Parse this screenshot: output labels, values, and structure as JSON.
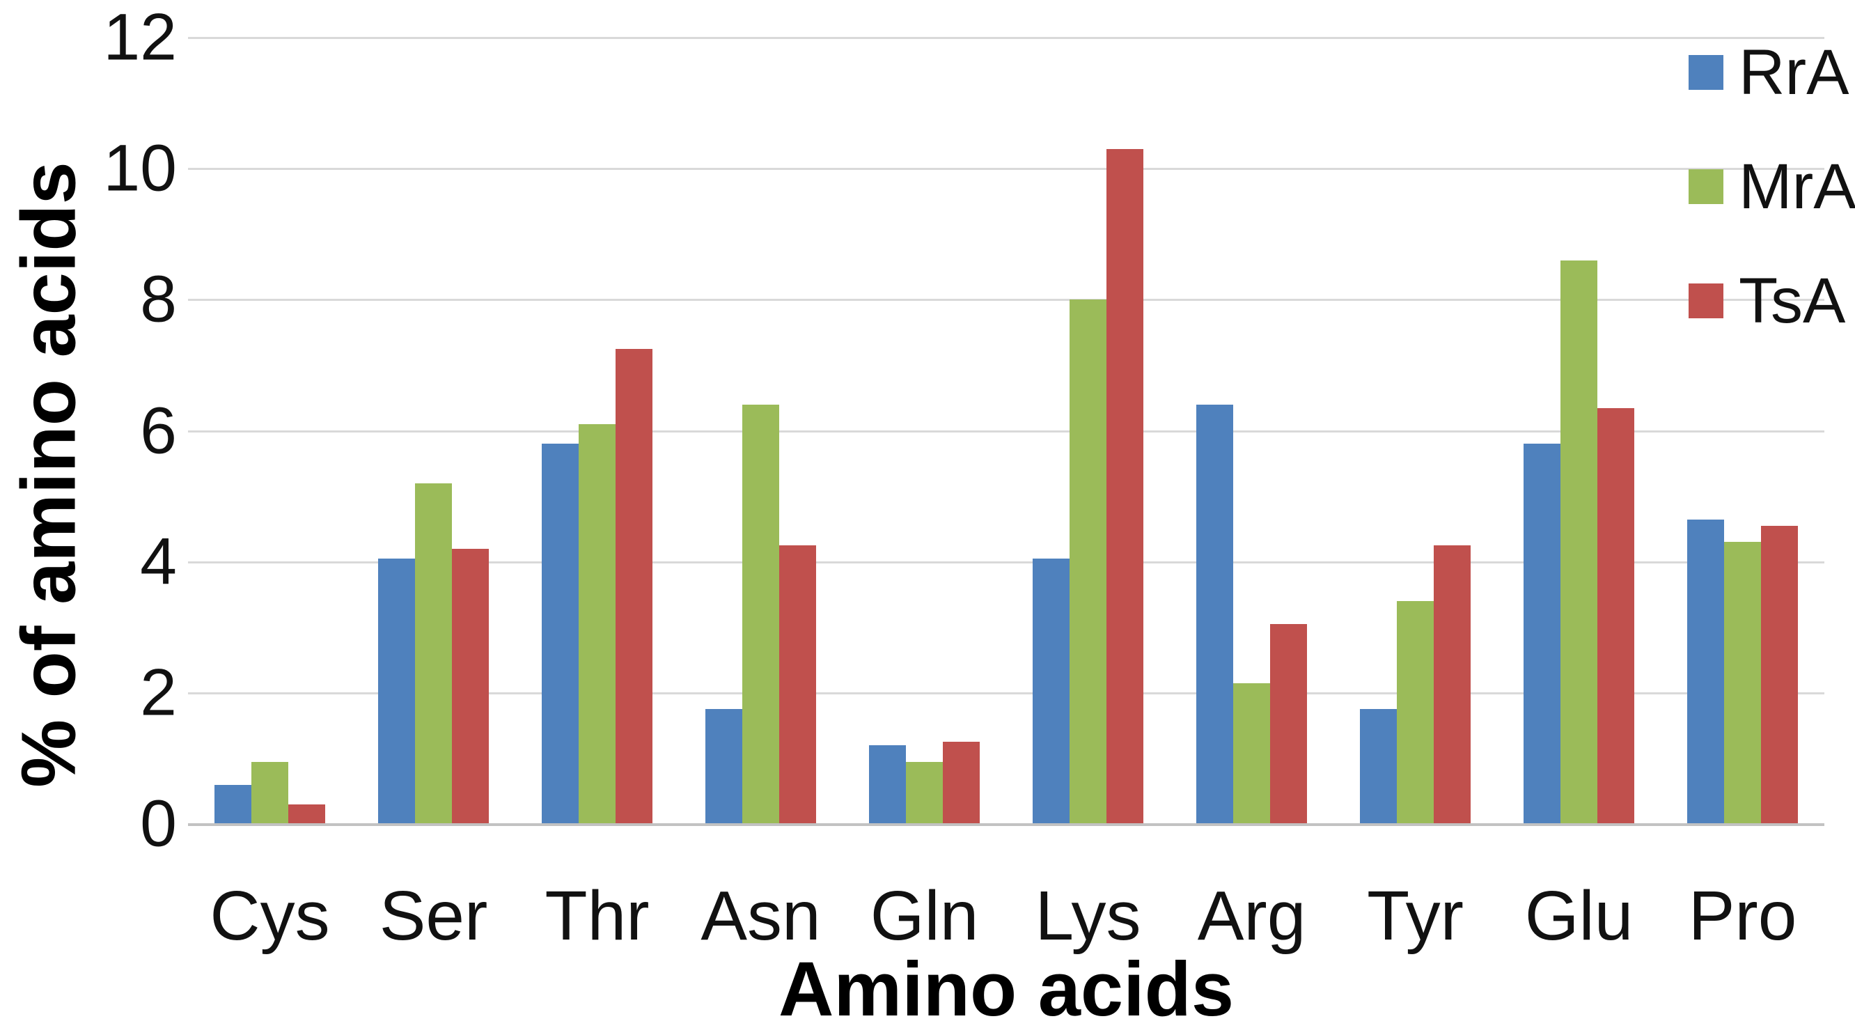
{
  "chart_data": {
    "type": "bar",
    "title": "",
    "xlabel": "Amino acids",
    "ylabel": "% of amino acids",
    "ylim": [
      0,
      12
    ],
    "yticks": [
      0,
      2,
      4,
      6,
      8,
      10,
      12
    ],
    "grid": true,
    "legend_position": "top-right",
    "gridline_color": "#d9d9d9",
    "axis_line_color": "#c2c2c2",
    "text_color": "#111111",
    "categories": [
      "Cys",
      "Ser",
      "Thr",
      "Asn",
      "Gln",
      "Lys",
      "Arg",
      "Tyr",
      "Glu",
      "Pro"
    ],
    "series": [
      {
        "name": "RrA",
        "color": "#4F81BD",
        "values": [
          0.6,
          4.05,
          5.8,
          1.75,
          1.2,
          4.05,
          6.4,
          1.75,
          5.8,
          4.65
        ]
      },
      {
        "name": "MrA",
        "color": "#9BBB59",
        "values": [
          0.95,
          5.2,
          6.1,
          6.4,
          0.95,
          8.0,
          2.15,
          3.4,
          8.6,
          4.3
        ]
      },
      {
        "name": "TsA",
        "color": "#C0504D",
        "values": [
          0.3,
          4.2,
          7.25,
          4.25,
          1.25,
          10.3,
          3.05,
          4.25,
          6.35,
          4.55
        ]
      }
    ]
  }
}
